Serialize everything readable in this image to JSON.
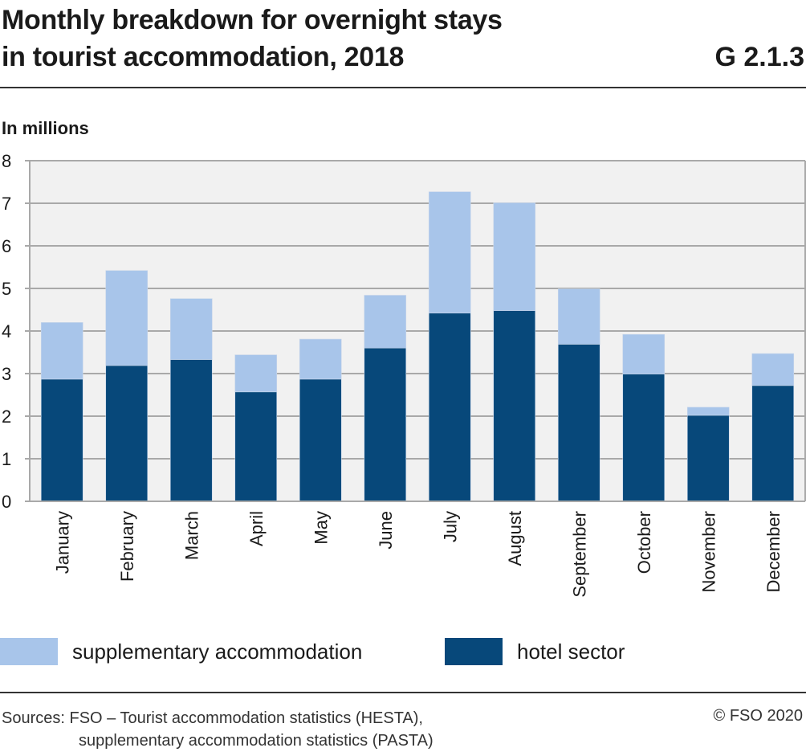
{
  "header": {
    "title_line1": "Monthly breakdown for overnight stays",
    "title_line2": "in tourist accommodation, 2018",
    "code": "G 2.1.3"
  },
  "chart_data": {
    "type": "bar",
    "stacked": true,
    "title": "Monthly breakdown for overnight stays in tourist accommodation, 2018",
    "ylabel": "In millions",
    "ylim": [
      0,
      8
    ],
    "yticks": [
      "0",
      "1",
      "2",
      "3",
      "4",
      "5",
      "6",
      "7",
      "8"
    ],
    "grid": true,
    "legend_position": "bottom",
    "categories": [
      "January",
      "February",
      "March",
      "April",
      "May",
      "June",
      "July",
      "August",
      "September",
      "October",
      "November",
      "December"
    ],
    "series": [
      {
        "name": "hotel sector",
        "color": "#07487a",
        "values": [
          2.87,
          3.19,
          3.33,
          2.57,
          2.87,
          3.6,
          4.42,
          4.48,
          3.69,
          2.99,
          2.02,
          2.72
        ]
      },
      {
        "name": "supplementary accommodation",
        "color": "#a8c5ea",
        "values": [
          1.33,
          2.23,
          1.43,
          0.87,
          0.94,
          1.24,
          2.85,
          2.53,
          1.3,
          0.93,
          0.19,
          0.75
        ]
      }
    ]
  },
  "footer": {
    "sources_line1": "Sources: FSO – Tourist accommodation statistics (HESTA),",
    "sources_line2": "supplementary accommodation statistics (PASTA)",
    "copyright": "© FSO 2020"
  }
}
